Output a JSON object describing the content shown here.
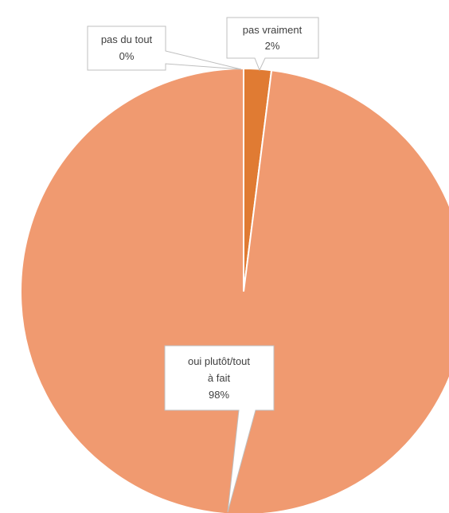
{
  "chart_data": {
    "type": "pie",
    "title": "",
    "slices": [
      {
        "name": "pas du tout",
        "value_label": "0%",
        "value": 0,
        "color": "#a05a2c"
      },
      {
        "name": "pas vraiment",
        "value_label": "2%",
        "value": 2,
        "color": "#e07b33"
      },
      {
        "name": "oui plutôt/tout à fait",
        "value_label": "98%",
        "value": 98,
        "color": "#f09a70"
      }
    ],
    "callouts": {
      "pas_du_tout": [
        "pas du tout",
        "0%"
      ],
      "pas_vraiment": [
        "pas vraiment",
        "2%"
      ],
      "oui": [
        "oui plutôt/tout",
        "à fait",
        "98%"
      ]
    }
  }
}
